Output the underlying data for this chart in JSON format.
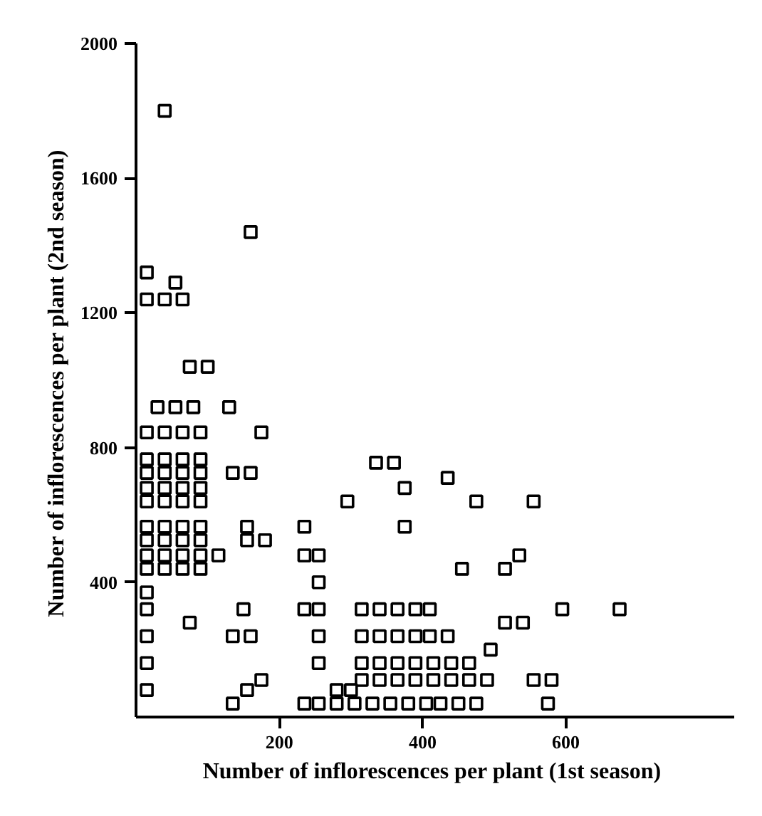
{
  "chart_data": {
    "type": "scatter",
    "xlabel": "Number of inflorescences per plant  (1st season)",
    "ylabel": "Number of inflorescences per plant  (2nd season)",
    "x": [
      40,
      160,
      15,
      55,
      15,
      40,
      65,
      75,
      100,
      30,
      55,
      80,
      130,
      15,
      40,
      65,
      90,
      175,
      15,
      40,
      65,
      90,
      335,
      360,
      435,
      15,
      40,
      65,
      90,
      135,
      160,
      15,
      40,
      65,
      90,
      375,
      15,
      40,
      65,
      90,
      295,
      475,
      555,
      15,
      40,
      65,
      90,
      155,
      235,
      375,
      15,
      40,
      65,
      90,
      155,
      180,
      15,
      40,
      65,
      90,
      115,
      235,
      255,
      535,
      15,
      40,
      65,
      90,
      455,
      515,
      255,
      15,
      15,
      150,
      235,
      255,
      315,
      340,
      365,
      390,
      410,
      595,
      675,
      75,
      515,
      540,
      15,
      135,
      160,
      255,
      315,
      340,
      365,
      390,
      410,
      435,
      495,
      15,
      255,
      315,
      340,
      365,
      390,
      415,
      440,
      465,
      175,
      315,
      340,
      365,
      390,
      415,
      440,
      465,
      490,
      555,
      580,
      15,
      155,
      280,
      300,
      135,
      235,
      255,
      280,
      305,
      330,
      355,
      380,
      405,
      425,
      450,
      475,
      575
    ],
    "values": [
      1800,
      1440,
      1320,
      1290,
      1240,
      1240,
      1240,
      1040,
      1040,
      920,
      920,
      920,
      920,
      845,
      845,
      845,
      845,
      845,
      765,
      765,
      765,
      765,
      755,
      755,
      710,
      725,
      725,
      725,
      725,
      725,
      725,
      680,
      680,
      680,
      680,
      680,
      640,
      640,
      640,
      640,
      640,
      640,
      640,
      565,
      565,
      565,
      565,
      565,
      565,
      565,
      525,
      525,
      525,
      525,
      525,
      525,
      480,
      480,
      480,
      480,
      480,
      480,
      480,
      480,
      440,
      440,
      440,
      440,
      440,
      440,
      400,
      370,
      320,
      320,
      320,
      320,
      320,
      320,
      320,
      320,
      320,
      320,
      320,
      280,
      280,
      280,
      240,
      240,
      240,
      240,
      240,
      240,
      240,
      240,
      240,
      240,
      200,
      160,
      160,
      160,
      160,
      160,
      160,
      160,
      160,
      160,
      110,
      110,
      110,
      110,
      110,
      110,
      110,
      110,
      110,
      110,
      110,
      80,
      80,
      80,
      80,
      40,
      40,
      40,
      40,
      40,
      40,
      40,
      40,
      40,
      40,
      40,
      40,
      40
    ],
    "color": "#000000",
    "marker": "square",
    "xlim": [
      0,
      835
    ],
    "ylim": [
      0,
      2000
    ],
    "xticks": [
      200,
      400,
      600
    ],
    "yticks": [
      400,
      800,
      1200,
      1600,
      2000
    ],
    "grid": false
  }
}
